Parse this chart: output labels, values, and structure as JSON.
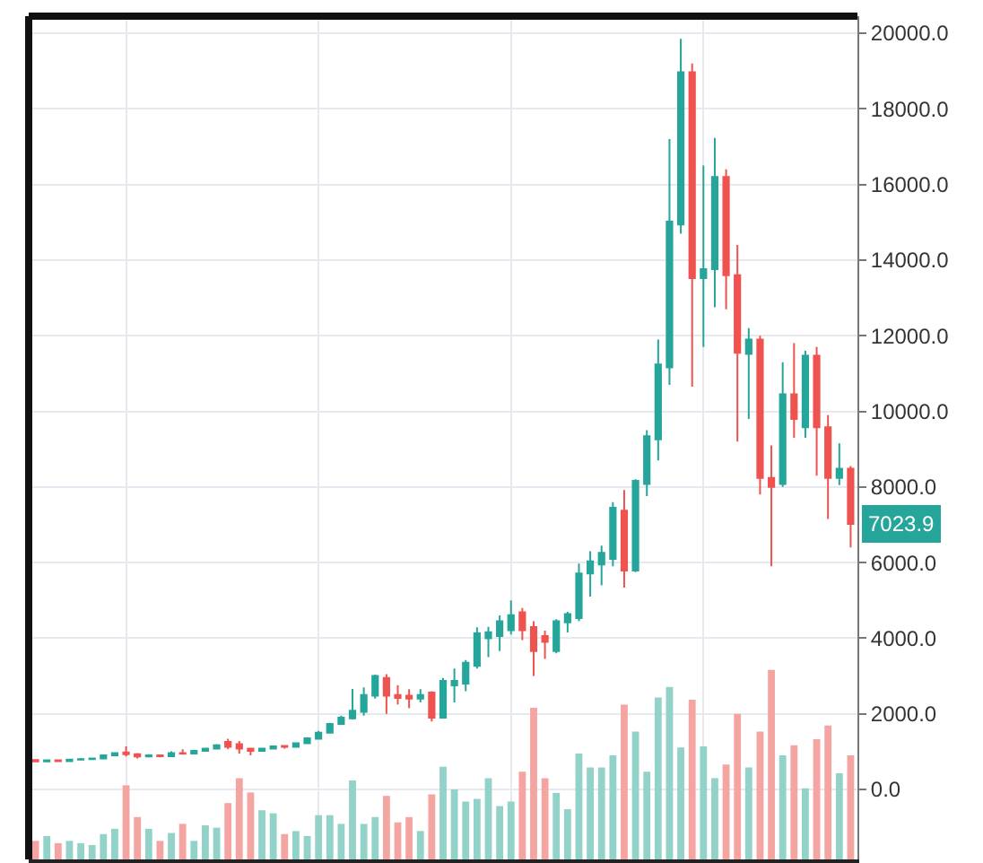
{
  "chart_data": {
    "type": "candlestick",
    "categories": [
      null,
      null,
      null,
      null,
      null,
      null,
      null,
      null,
      null,
      null,
      null,
      null,
      null,
      null,
      null,
      null,
      null,
      null,
      null,
      null,
      null,
      null,
      null,
      null,
      null,
      null,
      null,
      null,
      null,
      null,
      null,
      null,
      null,
      null,
      null,
      null,
      null,
      null,
      null,
      null,
      null,
      null,
      null,
      null,
      null,
      null,
      null,
      null,
      null,
      null,
      null,
      null,
      null,
      null,
      null,
      null,
      null,
      null,
      null,
      null,
      null,
      null,
      null,
      null,
      null,
      null,
      null,
      null,
      null,
      null,
      null,
      null,
      null
    ],
    "series": [
      {
        "type": "bar",
        "base": [
          -1850,
          -1850,
          -1850,
          -1850,
          -1850,
          -1850,
          -1850,
          -1850,
          -1850,
          -1850,
          -1850,
          -1850,
          -1850,
          -1850,
          -1850,
          -1850,
          -1850,
          -1850,
          -1850,
          -1850,
          -1850,
          -1850,
          -1850,
          -1850,
          -1850,
          -1850,
          -1850,
          -1850,
          -1850,
          -1850,
          -1850,
          -1850,
          -1850,
          -1850,
          -1850,
          -1850,
          -1850,
          -1850,
          -1850,
          -1850,
          -1850,
          -1850,
          -1850,
          -1850,
          -1850,
          -1850,
          -1850,
          -1850,
          -1850,
          -1850,
          -1850,
          -1850,
          -1850,
          -1850,
          -1850,
          -1850,
          -1850,
          -1850,
          -1850,
          -1850,
          -1850,
          -1850,
          -1850,
          -1850,
          -1850,
          -1850,
          -1850,
          -1850,
          -1850,
          -1850,
          -1850,
          -1850,
          -1850
        ],
        "values": [
          490,
          620,
          430,
          490,
          430,
          380,
          670,
          810,
          1960,
          1120,
          810,
          490,
          700,
          940,
          490,
          900,
          840,
          1490,
          2150,
          1770,
          1300,
          1220,
          670,
          750,
          620,
          1170,
          1170,
          940,
          2090,
          940,
          1120,
          1680,
          980,
          1120,
          750,
          1720,
          2450,
          1850,
          1530,
          1600,
          2150,
          1410,
          1530,
          2320,
          4010,
          2150,
          1760,
          1330,
          2800,
          2430,
          2430,
          2750,
          4090,
          3380,
          2320,
          4280,
          4560,
          2960,
          4220,
          2990,
          2150,
          2510,
          3850,
          2430,
          3380,
          5010,
          2750,
          3020,
          1880,
          3180,
          3540,
          2280,
          2750
        ],
        "colors": [
          "#f4a5a2",
          "#93d2c9",
          "#f4a5a2",
          "#93d2c9",
          "#93d2c9",
          "#93d2c9",
          "#93d2c9",
          "#93d2c9",
          "#f4a5a2",
          "#f4a5a2",
          "#93d2c9",
          "#f4a5a2",
          "#93d2c9",
          "#f4a5a2",
          "#93d2c9",
          "#93d2c9",
          "#93d2c9",
          "#f4a5a2",
          "#f4a5a2",
          "#f4a5a2",
          "#93d2c9",
          "#93d2c9",
          "#f4a5a2",
          "#93d2c9",
          "#93d2c9",
          "#93d2c9",
          "#93d2c9",
          "#93d2c9",
          "#93d2c9",
          "#93d2c9",
          "#93d2c9",
          "#f4a5a2",
          "#f4a5a2",
          "#f4a5a2",
          "#93d2c9",
          "#f4a5a2",
          "#93d2c9",
          "#93d2c9",
          "#93d2c9",
          "#93d2c9",
          "#93d2c9",
          "#93d2c9",
          "#93d2c9",
          "#f4a5a2",
          "#f4a5a2",
          "#f4a5a2",
          "#93d2c9",
          "#93d2c9",
          "#93d2c9",
          "#93d2c9",
          "#93d2c9",
          "#93d2c9",
          "#f4a5a2",
          "#93d2c9",
          "#93d2c9",
          "#93d2c9",
          "#93d2c9",
          "#93d2c9",
          "#f4a5a2",
          "#93d2c9",
          "#93d2c9",
          "#f4a5a2",
          "#f4a5a2",
          "#93d2c9",
          "#f4a5a2",
          "#f4a5a2",
          "#93d2c9",
          "#f4a5a2",
          "#93d2c9",
          "#f4a5a2",
          "#f4a5a2",
          "#93d2c9",
          "#f4a5a2"
        ]
      },
      {
        "ohlc": [
          [
            780,
            800,
            720,
            740
          ],
          [
            740,
            790,
            730,
            770
          ],
          [
            770,
            790,
            730,
            745
          ],
          [
            745,
            800,
            740,
            790
          ],
          [
            790,
            830,
            770,
            800
          ],
          [
            800,
            840,
            790,
            820
          ],
          [
            820,
            920,
            810,
            900
          ],
          [
            900,
            980,
            890,
            960
          ],
          [
            980,
            1140,
            870,
            930
          ],
          [
            930,
            960,
            820,
            870
          ],
          [
            870,
            930,
            860,
            900
          ],
          [
            900,
            920,
            850,
            880
          ],
          [
            880,
            1010,
            870,
            960
          ],
          [
            960,
            1060,
            920,
            950
          ],
          [
            950,
            1050,
            930,
            1020
          ],
          [
            1020,
            1100,
            1000,
            1080
          ],
          [
            1080,
            1200,
            1060,
            1170
          ],
          [
            1260,
            1340,
            1070,
            1130
          ],
          [
            1200,
            1280,
            950,
            1080
          ],
          [
            1080,
            1100,
            900,
            1020
          ],
          [
            1020,
            1100,
            1000,
            1080
          ],
          [
            1080,
            1160,
            1060,
            1140
          ],
          [
            1150,
            1170,
            1080,
            1130
          ],
          [
            1130,
            1240,
            1110,
            1220
          ],
          [
            1220,
            1380,
            1200,
            1350
          ],
          [
            1340,
            1550,
            1330,
            1500
          ],
          [
            1500,
            1760,
            1480,
            1730
          ],
          [
            1730,
            1950,
            1700,
            1900
          ],
          [
            1880,
            2660,
            1850,
            2080
          ],
          [
            2050,
            2700,
            1950,
            2500
          ],
          [
            2480,
            3040,
            2400,
            3000
          ],
          [
            2950,
            3050,
            2000,
            2480
          ],
          [
            2500,
            2760,
            2250,
            2420
          ],
          [
            2480,
            2650,
            2150,
            2400
          ],
          [
            2400,
            2650,
            2300,
            2500
          ],
          [
            2560,
            2600,
            1800,
            1900
          ],
          [
            1900,
            2950,
            1880,
            2870
          ],
          [
            2750,
            3200,
            2300,
            2870
          ],
          [
            2800,
            3420,
            2600,
            3350
          ],
          [
            3270,
            4290,
            3200,
            4130
          ],
          [
            4000,
            4300,
            3500,
            4160
          ],
          [
            4060,
            4600,
            3660,
            4450
          ],
          [
            4213,
            5000,
            4100,
            4608
          ],
          [
            4687,
            4800,
            3950,
            4213
          ],
          [
            4292,
            4450,
            3000,
            3661
          ],
          [
            4055,
            4200,
            3450,
            3900
          ],
          [
            3661,
            4500,
            3600,
            4450
          ],
          [
            4420,
            4700,
            4150,
            4640
          ],
          [
            4530,
            5970,
            4450,
            5710
          ],
          [
            5710,
            6300,
            5100,
            6030
          ],
          [
            5950,
            6450,
            5400,
            6260
          ],
          [
            6100,
            7600,
            5900,
            7450
          ],
          [
            7370,
            7920,
            5340,
            5790
          ],
          [
            5790,
            8200,
            5750,
            8160
          ],
          [
            8080,
            9500,
            7760,
            9340
          ],
          [
            9260,
            11900,
            8700,
            11240
          ],
          [
            11160,
            17200,
            10700,
            15020
          ],
          [
            14940,
            19850,
            14700,
            18970
          ],
          [
            18970,
            19200,
            10650,
            13520
          ],
          [
            13520,
            16500,
            11700,
            13760
          ],
          [
            13760,
            17230,
            12750,
            16200
          ],
          [
            16200,
            16400,
            12700,
            13600
          ],
          [
            13600,
            14400,
            9200,
            11550
          ],
          [
            11520,
            12200,
            9800,
            11900
          ],
          [
            11900,
            12000,
            7800,
            8240
          ],
          [
            8240,
            9100,
            5900,
            8000
          ],
          [
            8080,
            11300,
            8000,
            10450
          ],
          [
            10450,
            11800,
            9300,
            9800
          ],
          [
            9580,
            11600,
            9300,
            11470
          ],
          [
            11470,
            11700,
            8300,
            9580
          ],
          [
            9580,
            9900,
            7150,
            8240
          ],
          [
            8240,
            9150,
            8050,
            8480
          ],
          [
            8480,
            8550,
            6400,
            7023.9
          ]
        ],
        "colors": [
          "#ef5350",
          "#26a69a",
          "#ef5350",
          "#26a69a",
          "#26a69a",
          "#26a69a",
          "#26a69a",
          "#26a69a",
          "#ef5350",
          "#ef5350",
          "#26a69a",
          "#ef5350",
          "#26a69a",
          "#ef5350",
          "#26a69a",
          "#26a69a",
          "#26a69a",
          "#ef5350",
          "#ef5350",
          "#ef5350",
          "#26a69a",
          "#26a69a",
          "#ef5350",
          "#26a69a",
          "#26a69a",
          "#26a69a",
          "#26a69a",
          "#26a69a",
          "#26a69a",
          "#26a69a",
          "#26a69a",
          "#ef5350",
          "#ef5350",
          "#ef5350",
          "#26a69a",
          "#ef5350",
          "#26a69a",
          "#26a69a",
          "#26a69a",
          "#26a69a",
          "#26a69a",
          "#26a69a",
          "#26a69a",
          "#ef5350",
          "#ef5350",
          "#ef5350",
          "#26a69a",
          "#26a69a",
          "#26a69a",
          "#26a69a",
          "#26a69a",
          "#26a69a",
          "#ef5350",
          "#26a69a",
          "#26a69a",
          "#26a69a",
          "#26a69a",
          "#26a69a",
          "#ef5350",
          "#26a69a",
          "#26a69a",
          "#ef5350",
          "#ef5350",
          "#26a69a",
          "#ef5350",
          "#ef5350",
          "#26a69a",
          "#ef5350",
          "#26a69a",
          "#ef5350",
          "#ef5350",
          "#26a69a",
          "#ef5350"
        ]
      }
    ],
    "ylim": [
      -1850,
      20450
    ],
    "yticks": [
      {
        "value": 0,
        "label": "0.0"
      },
      {
        "value": 2000,
        "label": "2000.0"
      },
      {
        "value": 4000,
        "label": "4000.0"
      },
      {
        "value": 6000,
        "label": "6000.0"
      },
      {
        "value": 8000,
        "label": "8000.0"
      },
      {
        "value": 10000,
        "label": "10000.0"
      },
      {
        "value": 12000,
        "label": "12000.0"
      },
      {
        "value": 14000,
        "label": "14000.0"
      },
      {
        "value": 16000,
        "label": "16000.0"
      },
      {
        "value": 18000,
        "label": "18000.0"
      },
      {
        "value": 20000,
        "label": "20000.0"
      }
    ],
    "annotations": [
      {
        "text": "7023.9",
        "y": 7023.9
      }
    ],
    "grid": true,
    "tick_labels": "y"
  }
}
